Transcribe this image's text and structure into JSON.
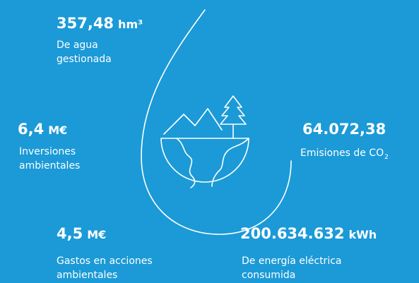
{
  "stats": [
    {
      "value": "357,48",
      "unit": "hm³",
      "label": [
        "De agua",
        "gestionada"
      ]
    },
    {
      "value": "6,4",
      "unit": "M€",
      "label": [
        "Inversiones",
        "ambientales"
      ]
    },
    {
      "value": "64.072,38",
      "label": [
        "Emisiones de CO"
      ],
      "label_sub": "2"
    },
    {
      "value": "4,5",
      "unit": "M€",
      "label": [
        "Gastos en acciones",
        "ambientales"
      ]
    },
    {
      "value": "200.634.632",
      "unit": "kWh",
      "label": [
        "De energía eléctrica",
        "consumida"
      ]
    }
  ]
}
